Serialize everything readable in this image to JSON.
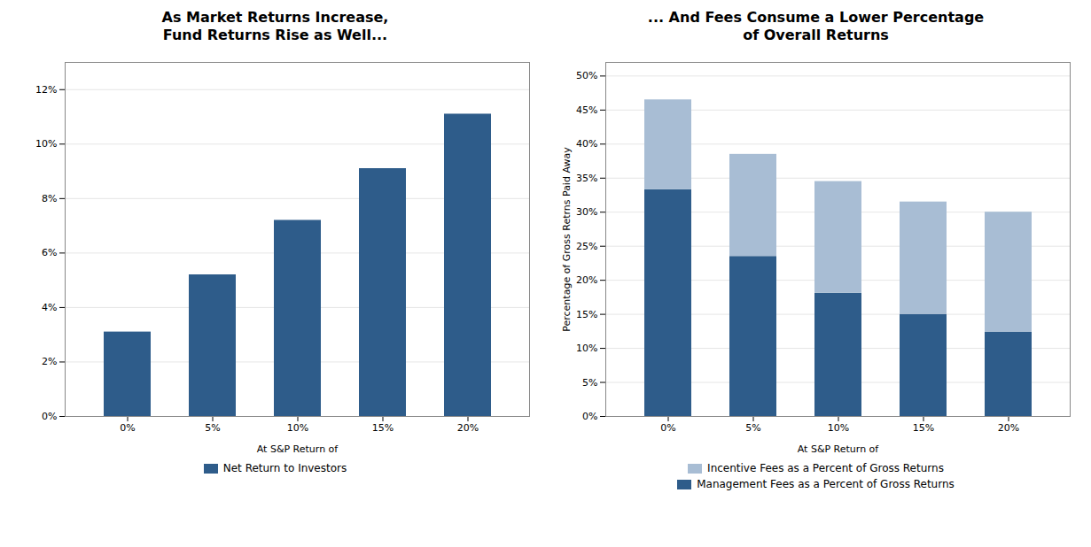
{
  "chart_data": [
    {
      "type": "bar",
      "title": "As Market Returns Increase,\nFund Returns Rise as Well...",
      "xlabel": "At S&P Return of",
      "categories": [
        "0%",
        "5%",
        "10%",
        "15%",
        "20%"
      ],
      "series": [
        {
          "name": "Net Return to Investors",
          "color": "#2E5C8A",
          "values": [
            0.031,
            0.052,
            0.072,
            0.091,
            0.111
          ]
        }
      ],
      "ylim": [
        0,
        0.13
      ],
      "yticks": [
        {
          "value": 0,
          "label": "0%"
        },
        {
          "value": 0.02,
          "label": "2%"
        },
        {
          "value": 0.04,
          "label": "4%"
        },
        {
          "value": 0.06,
          "label": "6%"
        },
        {
          "value": 0.08,
          "label": "8%"
        },
        {
          "value": 0.1,
          "label": "10%"
        },
        {
          "value": 0.12,
          "label": "12%"
        }
      ],
      "grid": true,
      "legend": "bottom"
    },
    {
      "type": "bar",
      "title": "... And Fees Consume a Lower Percentage\nof Overall Returns",
      "xlabel": "At S&P Return of",
      "ylabel": "Percentage of Gross Retrns Paid Away",
      "categories": [
        "0%",
        "5%",
        "10%",
        "15%",
        "20%"
      ],
      "series": [
        {
          "name": "Management Fees as a Percent of Gross Returns",
          "color": "#2E5C8A",
          "values": [
            0.333,
            0.235,
            0.181,
            0.15,
            0.124
          ]
        },
        {
          "name": "Incentive Fees as a Percent of Gross Returns",
          "color": "#A8BDD4",
          "values": [
            0.132,
            0.15,
            0.164,
            0.165,
            0.176
          ]
        }
      ],
      "stacked": true,
      "ylim": [
        0,
        0.52
      ],
      "yticks": [
        {
          "value": 0,
          "label": "0%"
        },
        {
          "value": 0.05,
          "label": "5%"
        },
        {
          "value": 0.1,
          "label": "10%"
        },
        {
          "value": 0.15,
          "label": "15%"
        },
        {
          "value": 0.2,
          "label": "20%"
        },
        {
          "value": 0.25,
          "label": "25%"
        },
        {
          "value": 0.3,
          "label": "30%"
        },
        {
          "value": 0.35,
          "label": "35%"
        },
        {
          "value": 0.4,
          "label": "40%"
        },
        {
          "value": 0.45,
          "label": "45%"
        },
        {
          "value": 0.5,
          "label": "50%"
        }
      ],
      "grid": true,
      "legend": "bottom"
    }
  ]
}
